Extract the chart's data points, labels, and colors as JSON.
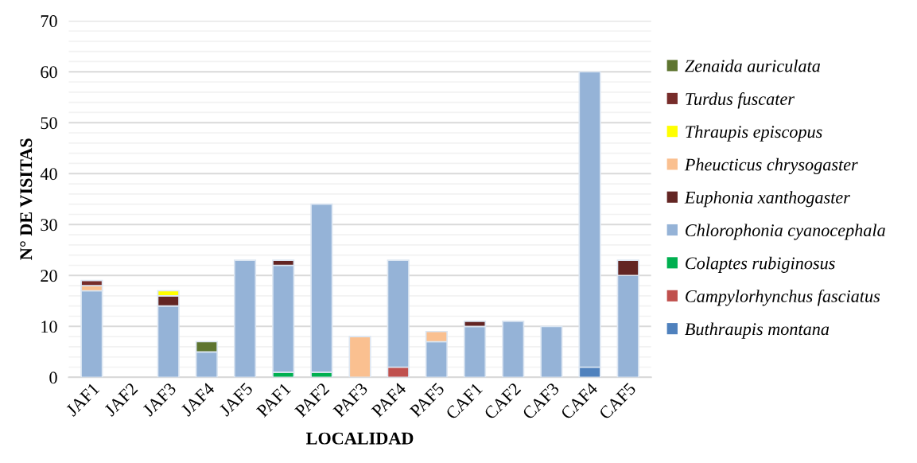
{
  "chart_data": {
    "type": "bar",
    "stacked": true,
    "xlabel": "LOCALIDAD",
    "ylabel": "N° DE VISITAS",
    "categories": [
      "JAF1",
      "JAF2",
      "JAF3",
      "JAF4",
      "JAF5",
      "PAF1",
      "PAF2",
      "PAF3",
      "PAF4",
      "PAF5",
      "CAF1",
      "CAF2",
      "CAF3",
      "CAF4",
      "CAF5"
    ],
    "series": [
      {
        "name": "Buthraupis montana",
        "color": "#4f81bd",
        "values": [
          0,
          0,
          0,
          0,
          0,
          0,
          0,
          0,
          0,
          0,
          0,
          0,
          0,
          2,
          0
        ]
      },
      {
        "name": "Campylorhynchus fasciatus",
        "color": "#c0504d",
        "values": [
          0,
          0,
          0,
          0,
          0,
          0,
          0,
          0,
          2,
          0,
          0,
          0,
          0,
          0,
          0
        ]
      },
      {
        "name": "Colaptes rubiginosus",
        "color": "#00b050",
        "values": [
          0,
          0,
          0,
          0,
          0,
          1,
          1,
          0,
          0,
          0,
          0,
          0,
          0,
          0,
          0
        ]
      },
      {
        "name": "Chlorophonia cyanocephala",
        "color": "#95b3d7",
        "values": [
          17,
          0,
          14,
          5,
          23,
          21,
          33,
          0,
          21,
          7,
          10,
          11,
          10,
          58,
          20
        ]
      },
      {
        "name": "Euphonia xanthogaster",
        "color": "#632523",
        "values": [
          0,
          0,
          2,
          0,
          0,
          1,
          0,
          0,
          0,
          0,
          1,
          0,
          0,
          0,
          3
        ]
      },
      {
        "name": "Pheucticus chrysogaster",
        "color": "#fac090",
        "values": [
          1,
          0,
          0,
          0,
          0,
          0,
          0,
          8,
          0,
          2,
          0,
          0,
          0,
          0,
          0
        ]
      },
      {
        "name": "Thraupis episcopus",
        "color": "#ffff00",
        "values": [
          0,
          0,
          1,
          0,
          0,
          0,
          0,
          0,
          0,
          0,
          0,
          0,
          0,
          0,
          0
        ]
      },
      {
        "name": "Turdus fuscater",
        "color": "#772c2a",
        "values": [
          1,
          0,
          0,
          0,
          0,
          0,
          0,
          0,
          0,
          0,
          0,
          0,
          0,
          0,
          0
        ]
      },
      {
        "name": "Zenaida auriculata",
        "color": "#5e7530",
        "values": [
          0,
          0,
          0,
          2,
          0,
          0,
          0,
          0,
          0,
          0,
          0,
          0,
          0,
          0,
          0
        ]
      }
    ],
    "ylim": [
      0,
      70
    ],
    "yticks": [
      0,
      {
        "value": 2,
        "label": null
      },
      {
        "value": 4,
        "label": null
      },
      {
        "value": 6,
        "label": null
      },
      {
        "value": 8,
        "label": null
      },
      10,
      {
        "value": 12,
        "label": null
      },
      {
        "value": 14,
        "label": null
      },
      {
        "value": 16,
        "label": null
      },
      {
        "value": 18,
        "label": null
      },
      20,
      {
        "value": 22,
        "label": null
      },
      {
        "value": 24,
        "label": null
      },
      {
        "value": 26,
        "label": null
      },
      {
        "value": 28,
        "label": null
      },
      30,
      {
        "value": 32,
        "label": null
      },
      {
        "value": 34,
        "label": null
      },
      {
        "value": 36,
        "label": null
      },
      {
        "value": 38,
        "label": null
      },
      40,
      {
        "value": 42,
        "label": null
      },
      {
        "value": 44,
        "label": null
      },
      {
        "value": 46,
        "label": null
      },
      {
        "value": 48,
        "label": null
      },
      50,
      {
        "value": 52,
        "label": null
      },
      {
        "value": 54,
        "label": null
      },
      {
        "value": 56,
        "label": null
      },
      {
        "value": 58,
        "label": null
      },
      60,
      {
        "value": 62,
        "label": null
      },
      {
        "value": 64,
        "label": null
      },
      {
        "value": 66,
        "label": null
      },
      {
        "value": 68,
        "label": null
      },
      70
    ],
    "grid": "y",
    "legend": "right"
  }
}
